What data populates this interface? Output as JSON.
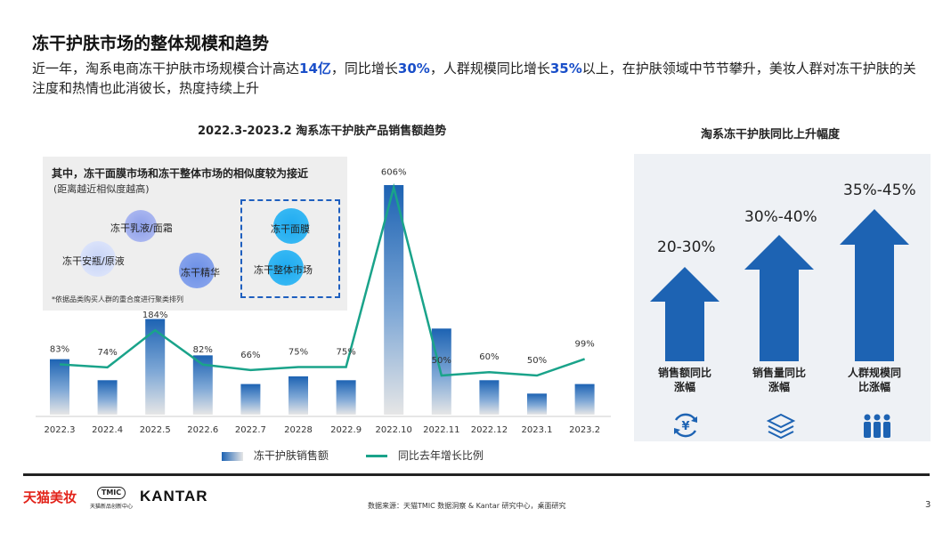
{
  "page": {
    "title": "冻干护肤市场的整体规模和趋势",
    "subtitle_parts": [
      "近一年，淘系电商冻干护肤市场规模合计高达",
      "14亿",
      "，同比增长",
      "30%",
      "，人群规模同比增长",
      "35%",
      "以上，在护肤领域中节节攀升，美妆人群对冻干护肤的关注度和热情也此消彼长，热度持续上升"
    ],
    "page_number": "3"
  },
  "chart_data": {
    "type": "bar",
    "title": "2022.3-2023.2 淘系冻干护肤产品销售额趋势",
    "categories": [
      "2022.3",
      "2022.4",
      "2022.5",
      "2022.6",
      "2022.7",
      "20228",
      "2022.9",
      "2022.10",
      "2022.11",
      "2022.12",
      "2023.1",
      "2023.2"
    ],
    "series": [
      {
        "name": "冻干护肤销售额",
        "kind": "bar",
        "values": [
          2.9,
          1.8,
          5.0,
          3.1,
          1.6,
          2.0,
          1.8,
          12.0,
          4.5,
          1.8,
          1.1,
          1.6
        ]
      },
      {
        "name": "同比去年增长比例",
        "kind": "line",
        "values": [
          83,
          74,
          184,
          82,
          66,
          75,
          75,
          606,
          50,
          60,
          50,
          99
        ],
        "labels": [
          "83%",
          "74%",
          "184%",
          "82%",
          "66%",
          "75%",
          "75%",
          "606%",
          "50%",
          "60%",
          "50%",
          "99%"
        ]
      }
    ],
    "bar_color": "#1d63b3",
    "line_color": "#1aa38a"
  },
  "similarity": {
    "heading": "其中，冻干面膜市场和冻干整体市场的相似度较为接近",
    "subheading": "(距离越近相似度越高)",
    "note": "*依据品类购买人群的重合度进行聚类排列",
    "bubbles": [
      "冻干乳液/面霜",
      "冻干安瓶/原液",
      "冻干精华",
      "冻干面膜",
      "冻干整体市场"
    ]
  },
  "growth": {
    "title": "淘系冻干护肤同比上升幅度",
    "items": [
      {
        "value": "20-30%",
        "label_line1": "销售额同比",
        "label_line2": "涨幅",
        "icon": "yuan-cycle-icon"
      },
      {
        "value": "30%-40%",
        "label_line1": "销售量同比",
        "label_line2": "涨幅",
        "icon": "layers-icon"
      },
      {
        "value": "35%-45%",
        "label_line1": "人群规模同",
        "label_line2": "比涨幅",
        "icon": "people-icon"
      }
    ],
    "arrow_color": "#1d63b3"
  },
  "footer": {
    "brand1": "天猫美妆",
    "brand2": "TMIC",
    "brand2_sub": "天猫新品创新中心",
    "brand3": "KANTAR",
    "source": "数据来源：天猫TMIC 数据洞察 & Kantar 研究中心，桌面研究"
  }
}
